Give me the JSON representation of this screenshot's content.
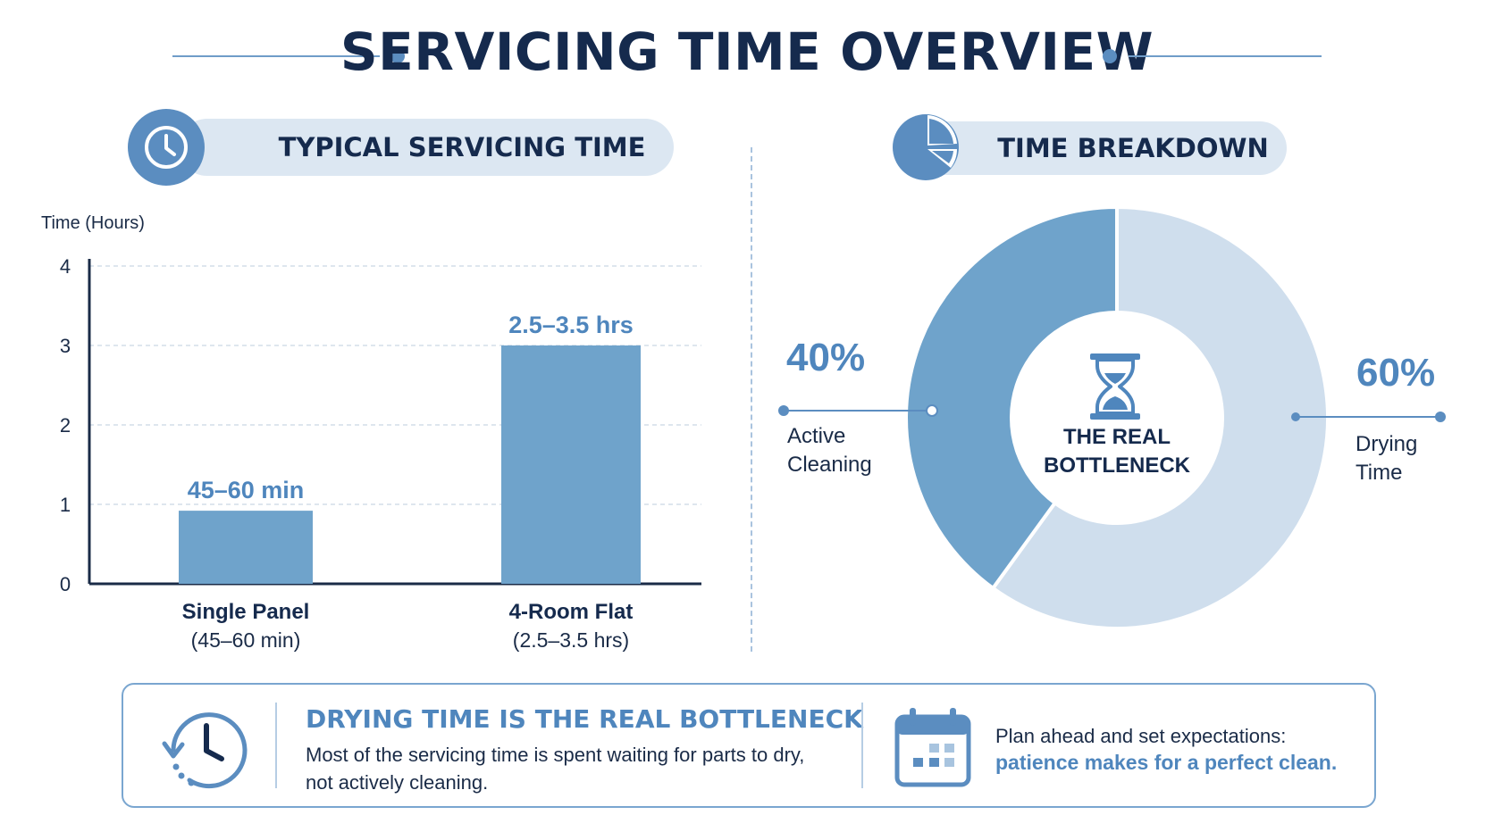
{
  "title": "SERVICING TIME OVERVIEW",
  "left_panel": {
    "heading": "TYPICAL SERVICING TIME",
    "icon": "clock-icon"
  },
  "right_panel": {
    "heading": "TIME BREAKDOWN",
    "icon": "pie-chart-icon"
  },
  "chart_data": [
    {
      "type": "bar",
      "ylabel": "Time (Hours)",
      "ylim": [
        0,
        4
      ],
      "yticks": [
        "0",
        "1",
        "2",
        "3",
        "4"
      ],
      "categories": [
        "Single Panel",
        "4-Room Flat"
      ],
      "category_sublabels": [
        "(45–60 min)",
        "(2.5–3.5 hrs)"
      ],
      "values": [
        0.92,
        3.0
      ],
      "data_labels": [
        "45–60 min",
        "2.5–3.5 hrs"
      ],
      "grid": true,
      "color": "#6fa3cb"
    },
    {
      "type": "pie",
      "variant": "donut",
      "slices": [
        {
          "pct": "40%",
          "value": 40,
          "label": [
            "Active",
            "Cleaning"
          ],
          "color": "#6fa3cb"
        },
        {
          "pct": "60%",
          "value": 60,
          "label": [
            "Drying",
            "Time"
          ],
          "color": "#cfdeed"
        }
      ],
      "center_label": [
        "THE REAL",
        "BOTTLENECK"
      ],
      "center_icon": "hourglass-icon"
    }
  ],
  "callout": {
    "heading": "DRYING TIME IS THE REAL BOTTLENECK",
    "body_line1": "Most of the servicing time is spent waiting for parts to dry,",
    "body_line2": "not actively cleaning.",
    "tip_line1": "Plan ahead and set expectations:",
    "tip_line2": "patience makes for a perfect clean.",
    "left_icon": "history-clock-icon",
    "right_icon": "calendar-icon"
  },
  "colors": {
    "primary": "#5b8dc0",
    "navy": "#152a4d",
    "light": "#dce7f2"
  }
}
